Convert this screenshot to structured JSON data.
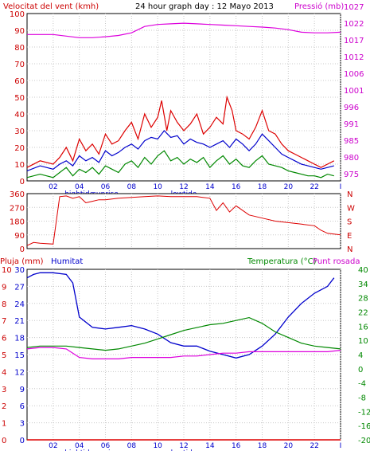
{
  "header": {
    "wind_label": "Velocitat del vent (kmh)",
    "title": "24 hour graph day : 12 Mayo 2013",
    "pressure_label": "Pressió (mb)"
  },
  "bottom_panel": {
    "rain_label": "Pluja (mm)",
    "humidity_label": "Humitat",
    "temperature_label": "Temperatura (°C)",
    "dewpoint_label": "Punt rosada"
  },
  "time_axis": {
    "hour_labels": [
      "02",
      "04",
      "06",
      "08",
      "10",
      "12",
      "14",
      "16",
      "18",
      "20",
      "22",
      "I"
    ],
    "event_labels": [
      {
        "text": "hightide",
        "x": 4
      },
      {
        "text": "sunrise",
        "x": 6
      },
      {
        "text": "lowtide",
        "x": 12
      }
    ]
  },
  "colors": {
    "wind_gust": "#dd0000",
    "wind_avg": "#0000cc",
    "wind_low": "#008800",
    "pressure": "#dd00dd",
    "direction": "#dd0000",
    "humidity": "#0000cc",
    "temperature": "#008800",
    "dewpoint": "#dd00dd",
    "rain": "#dd0000",
    "axis_red": "#cc0000",
    "axis_magenta": "#cc00cc",
    "axis_blue": "#0000cc",
    "axis_green": "#008800"
  },
  "chart_data": [
    {
      "type": "line",
      "title": "24 hour graph day : 12 Mayo 2013",
      "xlim": [
        0,
        24
      ],
      "left_axis": {
        "label": "Velocitat del vent (kmh)",
        "range": [
          0,
          100
        ],
        "ticks": [
          0,
          10,
          20,
          30,
          40,
          50,
          60,
          70,
          80,
          90,
          100
        ]
      },
      "right_axis": {
        "label": "Pressió (mb)",
        "range": [
          973,
          1025
        ],
        "ticks": [
          975,
          980,
          985,
          991,
          996,
          1001,
          1006,
          1012,
          1017,
          1022,
          1027
        ]
      },
      "series": [
        {
          "name": "wind_gust",
          "axis": "left",
          "x": [
            0,
            1,
            2,
            2.5,
            3,
            3.5,
            4,
            4.5,
            5,
            5.5,
            6,
            6.5,
            7,
            7.5,
            8,
            8.5,
            9,
            9.5,
            10,
            10.3,
            10.7,
            11,
            11.5,
            12,
            12.5,
            13,
            13.5,
            14,
            14.5,
            15,
            15.3,
            15.7,
            16,
            16.5,
            17,
            17.5,
            18,
            18.5,
            19,
            19.5,
            20,
            20.5,
            21,
            21.5,
            22,
            22.5,
            23,
            23.5
          ],
          "values": [
            8,
            12,
            10,
            14,
            20,
            12,
            25,
            18,
            22,
            16,
            28,
            22,
            24,
            30,
            35,
            25,
            40,
            32,
            38,
            48,
            30,
            42,
            35,
            30,
            34,
            40,
            28,
            32,
            38,
            34,
            50,
            42,
            30,
            28,
            25,
            32,
            42,
            30,
            28,
            22,
            18,
            16,
            14,
            12,
            10,
            8,
            10,
            12
          ]
        },
        {
          "name": "wind_avg",
          "axis": "left",
          "x": [
            0,
            1,
            2,
            2.5,
            3,
            3.5,
            4,
            4.5,
            5,
            5.5,
            6,
            6.5,
            7,
            7.5,
            8,
            8.5,
            9,
            9.5,
            10,
            10.5,
            11,
            11.5,
            12,
            12.5,
            13,
            13.5,
            14,
            14.5,
            15,
            15.5,
            16,
            16.5,
            17,
            17.5,
            18,
            18.5,
            19,
            19.5,
            20,
            20.5,
            21,
            21.5,
            22,
            22.5,
            23,
            23.5
          ],
          "values": [
            6,
            9,
            7,
            10,
            12,
            9,
            15,
            12,
            14,
            11,
            18,
            15,
            17,
            20,
            22,
            19,
            24,
            26,
            25,
            30,
            26,
            27,
            22,
            25,
            23,
            22,
            20,
            22,
            24,
            20,
            25,
            22,
            18,
            22,
            28,
            24,
            20,
            16,
            14,
            12,
            10,
            9,
            8,
            7,
            8,
            9
          ]
        },
        {
          "name": "wind_low",
          "axis": "left",
          "x": [
            0,
            1,
            2,
            2.5,
            3,
            3.5,
            4,
            4.5,
            5,
            5.5,
            6,
            6.5,
            7,
            7.5,
            8,
            8.5,
            9,
            9.5,
            10,
            10.5,
            11,
            11.5,
            12,
            12.5,
            13,
            13.5,
            14,
            14.5,
            15,
            15.5,
            16,
            16.5,
            17,
            17.5,
            18,
            18.5,
            19,
            19.5,
            20,
            20.5,
            21,
            21.5,
            22,
            22.5,
            23,
            23.5
          ],
          "values": [
            2,
            4,
            2,
            5,
            8,
            3,
            7,
            5,
            8,
            4,
            9,
            7,
            5,
            10,
            12,
            8,
            14,
            10,
            15,
            18,
            12,
            14,
            10,
            13,
            11,
            14,
            8,
            12,
            15,
            10,
            13,
            9,
            8,
            12,
            15,
            10,
            9,
            8,
            6,
            5,
            4,
            3,
            3,
            2,
            4,
            3
          ]
        },
        {
          "name": "pressure",
          "axis": "right",
          "x": [
            0,
            2,
            4,
            5,
            6,
            7,
            8,
            9,
            10,
            11,
            12,
            13,
            14,
            15,
            16,
            17,
            18,
            19,
            20,
            21,
            22,
            23,
            24
          ],
          "values": [
            1018.5,
            1018.5,
            1017.5,
            1017.5,
            1017.8,
            1018.2,
            1019.0,
            1021.0,
            1021.6,
            1021.8,
            1022.0,
            1021.8,
            1021.6,
            1021.4,
            1021.2,
            1021.0,
            1020.8,
            1020.5,
            1020.0,
            1019.2,
            1019.0,
            1019.0,
            1019.2
          ]
        }
      ]
    },
    {
      "type": "line",
      "xlim": [
        0,
        24
      ],
      "left_axis": {
        "range": [
          0,
          360
        ],
        "ticks": [
          0,
          90,
          180,
          270,
          360
        ]
      },
      "right_axis": {
        "labels": [
          "N",
          "W",
          "S",
          "E",
          "N"
        ]
      },
      "series": [
        {
          "name": "wind_direction",
          "axis": "left",
          "x": [
            0,
            0.5,
            1,
            2,
            2.5,
            3,
            3.5,
            4,
            4.5,
            5,
            5.5,
            6,
            7,
            8,
            9,
            10,
            11,
            12,
            13,
            14,
            14.5,
            15,
            15.5,
            16,
            17,
            18,
            19,
            20,
            21,
            22,
            22.5,
            23,
            24
          ],
          "values": [
            20,
            40,
            35,
            30,
            340,
            345,
            330,
            340,
            300,
            310,
            320,
            320,
            330,
            335,
            340,
            345,
            340,
            340,
            340,
            330,
            250,
            300,
            240,
            280,
            220,
            200,
            180,
            170,
            160,
            150,
            120,
            100,
            90
          ]
        }
      ]
    },
    {
      "type": "line",
      "xlim": [
        0,
        24
      ],
      "axes": {
        "rain": {
          "label": "Pluja (mm)",
          "ticks": [
            0,
            1,
            2,
            3,
            4,
            5,
            6,
            7,
            8,
            9,
            10
          ]
        },
        "humidity": {
          "label": "Humitat",
          "range": [
            0,
            100
          ],
          "ticks": [
            0,
            3,
            6,
            9,
            12,
            15,
            18,
            21,
            24,
            27,
            30
          ]
        },
        "temperature": {
          "label": "Temperatura (°C)",
          "range": [
            -20,
            40
          ],
          "ticks": [
            -20,
            -16,
            -12,
            -8,
            -4,
            0,
            4,
            10,
            16,
            22,
            28,
            34,
            40
          ]
        }
      },
      "series": [
        {
          "name": "humidity",
          "axis": "humidity",
          "x": [
            0,
            0.5,
            1,
            2,
            3,
            3.5,
            4,
            5,
            6,
            7,
            8,
            9,
            10,
            11,
            12,
            13,
            14,
            15,
            16,
            17,
            18,
            19,
            20,
            21,
            22,
            23,
            23.5
          ],
          "values": [
            95,
            97,
            98,
            98,
            97,
            92,
            72,
            66,
            65,
            66,
            67,
            65,
            62,
            57,
            55,
            55,
            52,
            50,
            48,
            50,
            55,
            62,
            72,
            80,
            86,
            90,
            95
          ]
        },
        {
          "name": "temperature",
          "axis": "temperature",
          "x": [
            0,
            1,
            2,
            3,
            4,
            5,
            6,
            7,
            8,
            9,
            10,
            11,
            12,
            13,
            14,
            15,
            16,
            17,
            18,
            19,
            20,
            21,
            22,
            23,
            24
          ],
          "values": [
            12.5,
            13,
            13,
            13,
            12.5,
            12,
            11.5,
            12,
            13,
            14,
            15.5,
            17,
            18.5,
            19.5,
            20.5,
            21,
            22,
            23,
            21,
            18,
            16,
            14,
            13,
            12.5,
            12
          ]
        },
        {
          "name": "dewpoint",
          "axis": "temperature",
          "x": [
            0,
            1,
            2,
            3,
            3.5,
            4,
            5,
            6,
            7,
            8,
            9,
            10,
            11,
            12,
            13,
            14,
            15,
            16,
            17,
            18,
            19,
            20,
            21,
            22,
            23,
            24
          ],
          "values": [
            12,
            12.5,
            12.5,
            12,
            10.5,
            9,
            8.5,
            8.5,
            8.5,
            9,
            9,
            9,
            9,
            9.5,
            9.5,
            10,
            10.5,
            10.5,
            11,
            11,
            11,
            11,
            11,
            11,
            11,
            11.5
          ]
        },
        {
          "name": "rain",
          "axis": "rain",
          "x": [
            0,
            24
          ],
          "values": [
            0,
            0
          ]
        }
      ]
    }
  ]
}
